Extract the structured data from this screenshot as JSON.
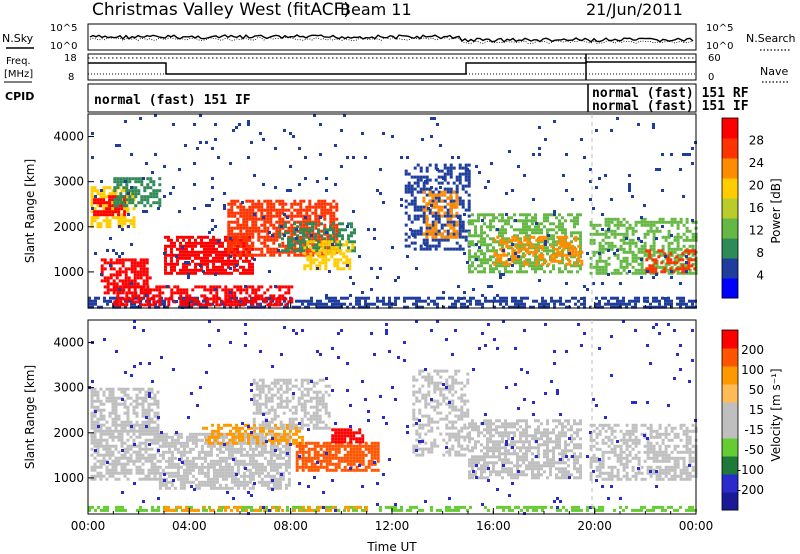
{
  "header": {
    "station": "Christmas Valley West (fitACF)",
    "beam": "Beam 11",
    "date": "21/Jun/2011"
  },
  "left_labels": {
    "nsky": "N.Sky",
    "freq_line1": "Freq.",
    "freq_line2": "[MHz]",
    "cpid": "CPID"
  },
  "right_labels": {
    "nsearch": "N.Search",
    "nave": "Nave"
  },
  "strip_ticks": {
    "noise_top": "10^5",
    "noise_bottom": "10^0",
    "freq_top": "18",
    "freq_bottom": "8",
    "nave_top": "60",
    "nave_bottom": "0"
  },
  "cpid": {
    "left": "normal (fast) 151 IF",
    "right_1": "normal (fast) 151 RF",
    "right_2": "normal (fast) 151 IF"
  },
  "colors": {
    "power": [
      "#0000ff",
      "#1e3d9c",
      "#2e8b57",
      "#66b844",
      "#b9cc2a",
      "#ffcc00",
      "#ff8c00",
      "#ff3300",
      "#ff0000"
    ],
    "velocity": [
      "#ff0000",
      "#ff5500",
      "#ff9900",
      "#ffbb55",
      "#bfbfbf",
      "#bfbfbf",
      "#66cc33",
      "#1f7a3a",
      "#2b2bcc",
      "#1a1a99"
    ]
  },
  "chart_data": [
    {
      "type": "heatmap",
      "name": "power",
      "ylabel": "Slant Range [km]",
      "yticks": [
        "1000",
        "2000",
        "3000",
        "4000"
      ],
      "ylim": [
        200,
        4500
      ],
      "xlim": [
        0,
        24
      ],
      "colorbar_label": "Power [dB]",
      "colorbar_ticks": [
        "4",
        "8",
        "12",
        "16",
        "20",
        "24",
        "28"
      ],
      "colorbar_range": [
        0,
        32
      ]
    },
    {
      "type": "heatmap",
      "name": "velocity",
      "ylabel": "Slant Range [km]",
      "yticks": [
        "1000",
        "2000",
        "3000",
        "4000"
      ],
      "ylim": [
        200,
        4500
      ],
      "xlim": [
        0,
        24
      ],
      "xlabel": "Time UT",
      "xticks": [
        "00:00",
        "04:00",
        "08:00",
        "12:00",
        "16:00",
        "20:00",
        "00:00"
      ],
      "colorbar_label": "Velocity [m s⁻¹]",
      "colorbar_ticks": [
        "200",
        "100",
        "50",
        "15",
        "-15",
        "-50",
        "-100",
        "-200"
      ]
    }
  ]
}
